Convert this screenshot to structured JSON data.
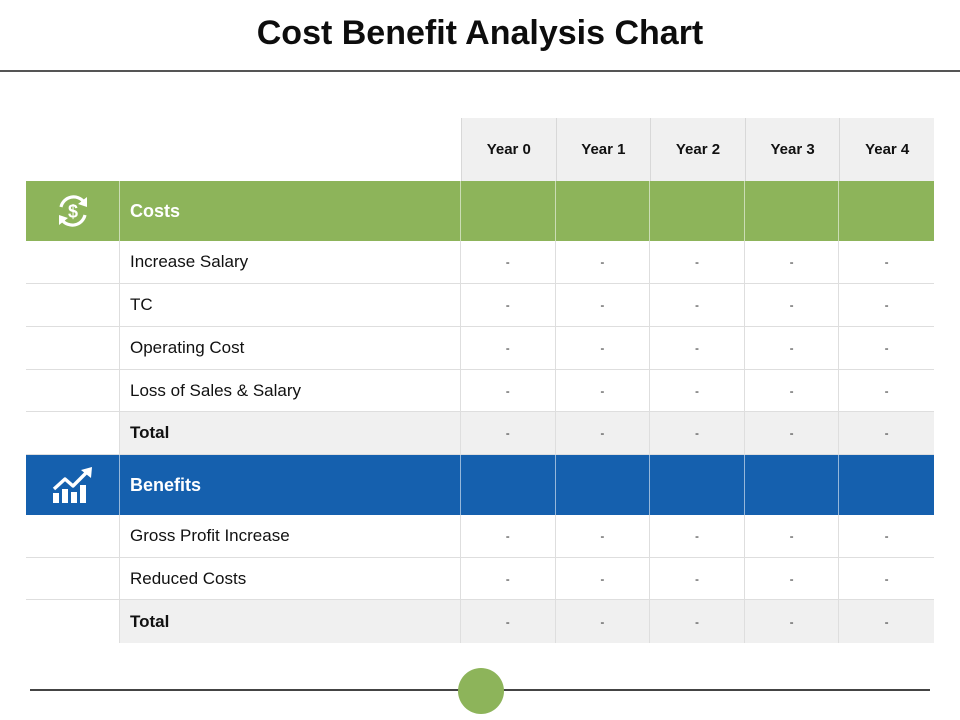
{
  "title": "Cost Benefit Analysis Chart",
  "columns": [
    "Year 0",
    "Year 1",
    "Year 2",
    "Year 3",
    "Year 4"
  ],
  "costs": {
    "label": "Costs",
    "icon": "dollar-cycle-icon",
    "color": "#8db45a",
    "rows": [
      {
        "label": "Increase Salary",
        "values": [
          "-",
          "-",
          "-",
          "-",
          "-"
        ]
      },
      {
        "label": "TC",
        "values": [
          "-",
          "-",
          "-",
          "-",
          "-"
        ]
      },
      {
        "label": "Operating Cost",
        "values": [
          "-",
          "-",
          "-",
          "-",
          "-"
        ]
      },
      {
        "label": "Loss of Sales & Salary",
        "values": [
          "-",
          "-",
          "-",
          "-",
          "-"
        ]
      }
    ],
    "total": {
      "label": "Total",
      "values": [
        "-",
        "-",
        "-",
        "-",
        "-"
      ]
    }
  },
  "benefits": {
    "label": "Benefits",
    "icon": "growth-chart-icon",
    "color": "#1560ae",
    "rows": [
      {
        "label": "Gross Profit Increase",
        "values": [
          "-",
          "-",
          "-",
          "-",
          "-"
        ]
      },
      {
        "label": "Reduced Costs",
        "values": [
          "-",
          "-",
          "-",
          "-",
          "-"
        ]
      }
    ],
    "total": {
      "label": "Total",
      "values": [
        "-",
        "-",
        "-",
        "-",
        "-"
      ]
    }
  }
}
